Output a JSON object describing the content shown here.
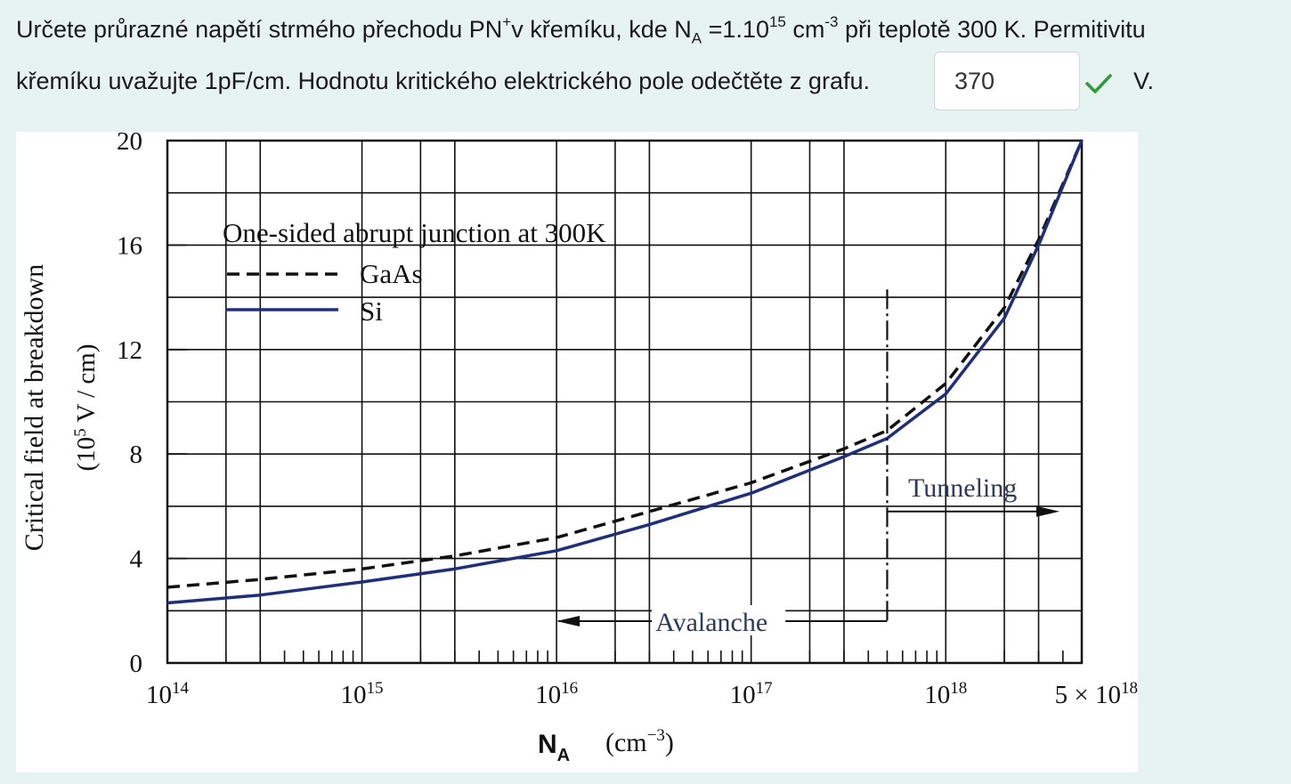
{
  "question": {
    "l1_a": "Určete průrazné napětí strmého přechodu PN",
    "l1_sup1": "+",
    "l1_b": "v křemíku, kde N",
    "l1_sub": "A",
    "l1_c": " =1.10",
    "l1_sup2": "15",
    "l1_d": " cm",
    "l1_sup3": "-3",
    "l1_e": " při teplotě 300 K. Permitivitu",
    "l2": "křemíku uvažujte 1pF/cm. Hodnotu kritického elektrického pole odečtěte z grafu."
  },
  "answer": {
    "value": "370",
    "unit": "V.",
    "status_icon": "check-icon",
    "status_color": "#2e9b3a"
  },
  "chart_data": {
    "type": "line",
    "title": "One-sided abrupt junction at 300K",
    "xlabel_main": "N",
    "xlabel_sub": "A",
    "xlabel_unit": "(cm",
    "xlabel_unit_sup": "−3",
    "xlabel_unit_close": ")",
    "ylabel": "Critical field at breakdown",
    "ylabel_unit_a": "(10",
    "ylabel_unit_sup": "5",
    "ylabel_unit_b": " V / cm)",
    "x_scale": "log",
    "xlim": [
      100000000000000.0,
      5e+18
    ],
    "ylim": [
      0,
      20
    ],
    "y_ticks": [
      "0",
      "4",
      "8",
      "12",
      "16",
      "20"
    ],
    "x_ticks": [
      {
        "value": 100000000000000.0,
        "base": "10",
        "exp": "14",
        "prefix": ""
      },
      {
        "value": 1000000000000000.0,
        "base": "10",
        "exp": "15",
        "prefix": ""
      },
      {
        "value": 1e+16,
        "base": "10",
        "exp": "16",
        "prefix": ""
      },
      {
        "value": 1e+17,
        "base": "10",
        "exp": "17",
        "prefix": ""
      },
      {
        "value": 1e+18,
        "base": "10",
        "exp": "18",
        "prefix": ""
      },
      {
        "value": 5e+18,
        "base": "10",
        "exp": "18",
        "prefix": "5 × "
      }
    ],
    "series": [
      {
        "name": "GaAs",
        "style": "dashed",
        "color": "#111111",
        "x": [
          100000000000000.0,
          300000000000000.0,
          1000000000000000.0,
          3000000000000000.0,
          1e+16,
          3e+16,
          1e+17,
          3e+17,
          5e+17,
          1e+18,
          2e+18,
          3e+18,
          5e+18
        ],
        "y": [
          2.9,
          3.2,
          3.6,
          4.1,
          4.8,
          5.8,
          6.9,
          8.2,
          8.9,
          10.7,
          13.6,
          16.2,
          20.0
        ]
      },
      {
        "name": "Si",
        "style": "solid",
        "color": "#1f2f7a",
        "x": [
          100000000000000.0,
          300000000000000.0,
          1000000000000000.0,
          3000000000000000.0,
          1e+16,
          3e+16,
          1e+17,
          3e+17,
          5e+17,
          1e+18,
          2e+18,
          3e+18,
          5e+18
        ],
        "y": [
          2.3,
          2.6,
          3.1,
          3.6,
          4.3,
          5.3,
          6.5,
          7.9,
          8.6,
          10.3,
          13.2,
          16.0,
          20.0
        ]
      }
    ],
    "annotations": {
      "avalanche": "Avalanche",
      "tunneling": "Tunneling",
      "boundary_x": 5e+17
    },
    "grid": true,
    "legend_position": "top-left"
  }
}
